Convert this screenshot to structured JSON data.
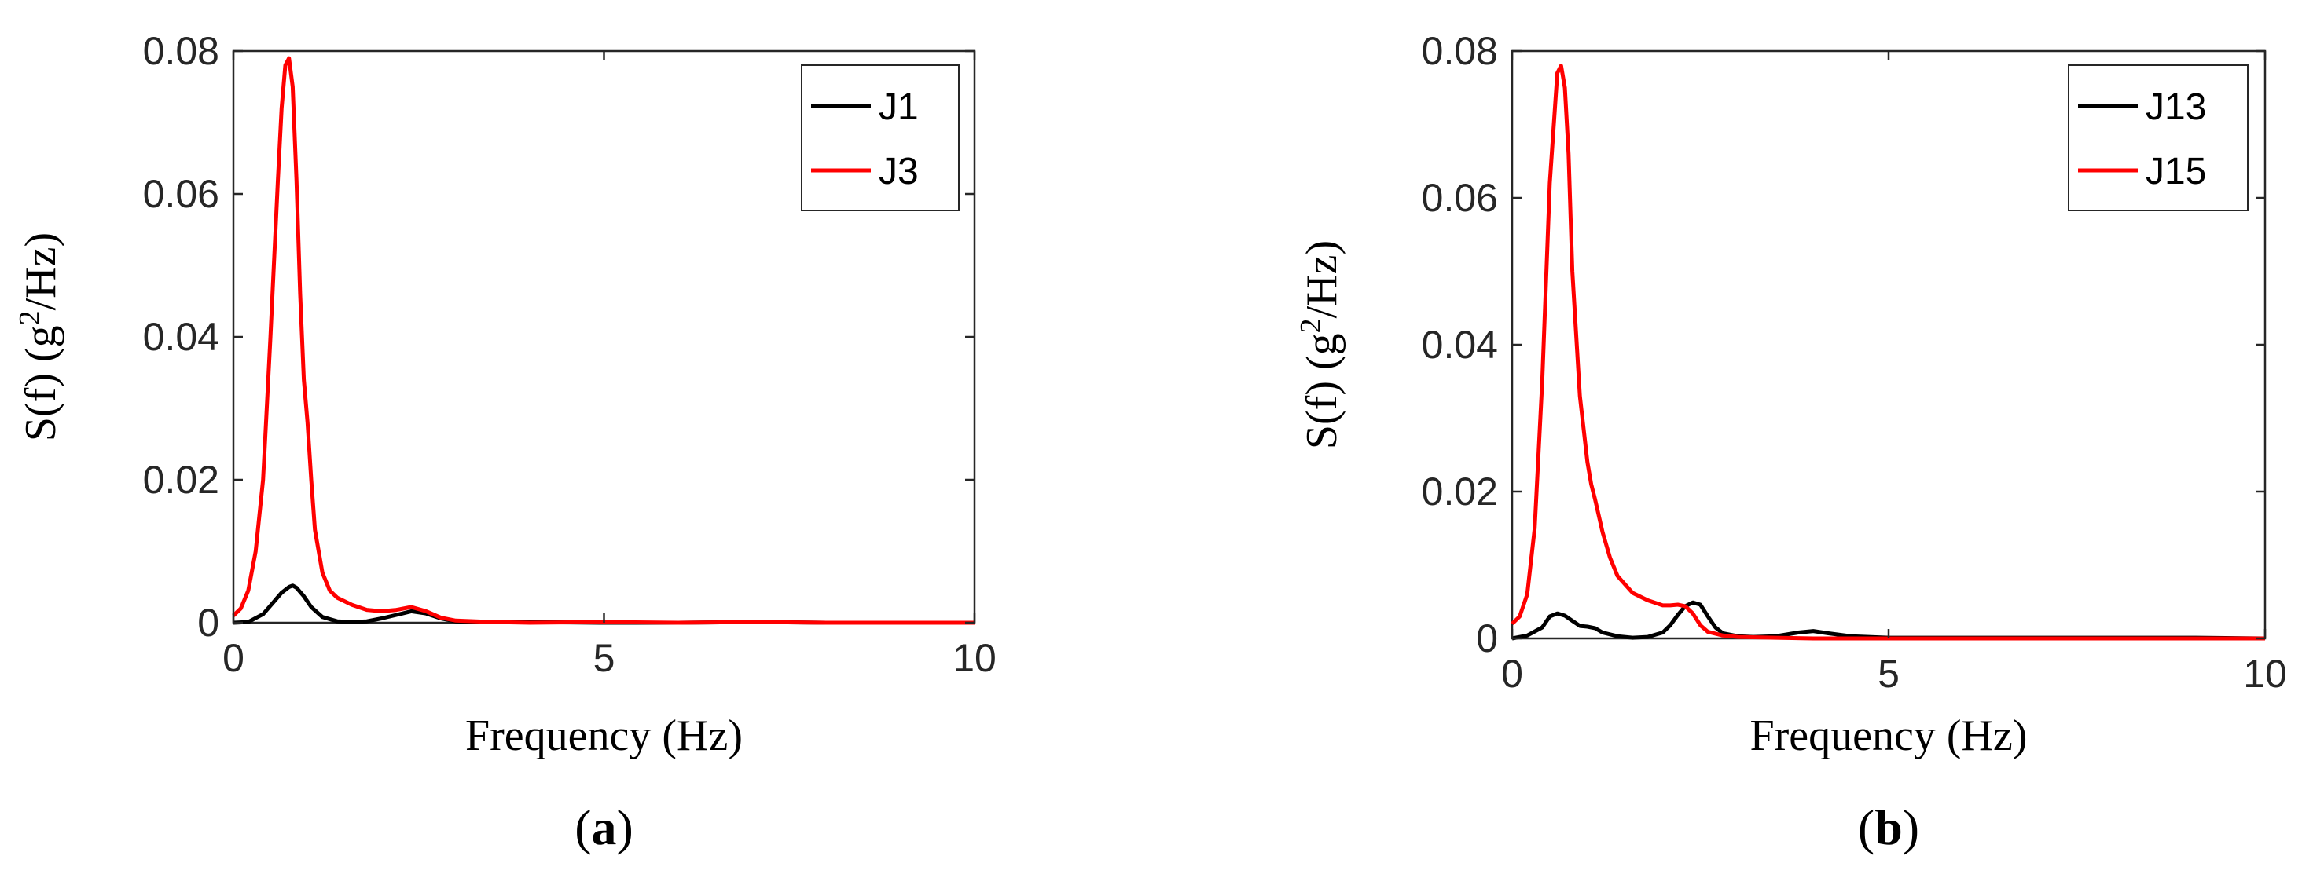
{
  "chart_data": [
    {
      "type": "line",
      "panel_label": {
        "open": "(",
        "letter": "a",
        "close": ")"
      },
      "xlabel": "Frequency (Hz)",
      "ylabel_prefix": "S(f) (g",
      "ylabel_sup": "2",
      "ylabel_suffix": "/Hz)",
      "xlim": [
        0,
        10
      ],
      "ylim": [
        0,
        0.08
      ],
      "xticks": [
        0,
        5,
        10
      ],
      "xtick_labels": [
        "0",
        "5",
        "10"
      ],
      "yticks": [
        0,
        0.02,
        0.04,
        0.06,
        0.08
      ],
      "ytick_labels": [
        "0",
        "0.02",
        "0.04",
        "0.06",
        "0.08"
      ],
      "grid": false,
      "legend_position": "top-right",
      "series": [
        {
          "name": "J1",
          "color": "#000000",
          "x": [
            0,
            0.2,
            0.4,
            0.55,
            0.65,
            0.75,
            0.8,
            0.85,
            0.95,
            1.05,
            1.2,
            1.4,
            1.6,
            1.8,
            2.0,
            2.2,
            2.4,
            2.6,
            2.8,
            3.0,
            3.5,
            4,
            5,
            6,
            7,
            8,
            9,
            10
          ],
          "y": [
            0,
            0.0001,
            0.0012,
            0.003,
            0.0042,
            0.005,
            0.0052,
            0.0049,
            0.0037,
            0.0022,
            0.0008,
            0.0002,
            0.0001,
            0.0002,
            0.0006,
            0.0011,
            0.0016,
            0.0013,
            0.0006,
            0.0002,
            0.0001,
            0.0001,
            0,
            0,
            0.0001,
            0,
            0,
            0
          ]
        },
        {
          "name": "J3",
          "color": "#ff0000",
          "x": [
            0,
            0.1,
            0.2,
            0.3,
            0.4,
            0.5,
            0.6,
            0.65,
            0.7,
            0.75,
            0.8,
            0.85,
            0.9,
            0.95,
            1.0,
            1.05,
            1.1,
            1.2,
            1.3,
            1.4,
            1.6,
            1.8,
            2.0,
            2.2,
            2.4,
            2.6,
            2.8,
            3.0,
            3.5,
            4,
            5,
            6,
            7,
            8,
            9,
            10
          ],
          "y": [
            0.001,
            0.002,
            0.0045,
            0.01,
            0.02,
            0.04,
            0.062,
            0.072,
            0.078,
            0.079,
            0.075,
            0.062,
            0.046,
            0.034,
            0.028,
            0.02,
            0.013,
            0.007,
            0.0045,
            0.0035,
            0.0025,
            0.0018,
            0.0016,
            0.0018,
            0.0022,
            0.0016,
            0.0007,
            0.0003,
            0.0001,
            0,
            0.0001,
            0,
            0.0001,
            0,
            0,
            0
          ]
        }
      ]
    },
    {
      "type": "line",
      "panel_label": {
        "open": "(",
        "letter": "b",
        "close": ")"
      },
      "xlabel": "Frequency (Hz)",
      "ylabel_prefix": "S(f) (g",
      "ylabel_sup": "2",
      "ylabel_suffix": "/Hz)",
      "xlim": [
        0,
        10
      ],
      "ylim": [
        0,
        0.08
      ],
      "xticks": [
        0,
        5,
        10
      ],
      "xtick_labels": [
        "0",
        "5",
        "10"
      ],
      "yticks": [
        0,
        0.02,
        0.04,
        0.06,
        0.08
      ],
      "ytick_labels": [
        "0",
        "0.02",
        "0.04",
        "0.06",
        "0.08"
      ],
      "grid": false,
      "legend_position": "top-right",
      "series": [
        {
          "name": "J13",
          "color": "#000000",
          "x": [
            0,
            0.2,
            0.4,
            0.5,
            0.6,
            0.7,
            0.8,
            0.9,
            1.0,
            1.1,
            1.2,
            1.4,
            1.6,
            1.8,
            2.0,
            2.1,
            2.2,
            2.3,
            2.4,
            2.5,
            2.6,
            2.7,
            2.8,
            3.0,
            3.2,
            3.5,
            3.8,
            4.0,
            4.2,
            4.5,
            5,
            6,
            7,
            8,
            9,
            10
          ],
          "y": [
            0,
            0.0004,
            0.0015,
            0.003,
            0.0034,
            0.0031,
            0.0024,
            0.0017,
            0.0016,
            0.0014,
            0.0008,
            0.0003,
            0.0001,
            0.0002,
            0.0008,
            0.0018,
            0.0032,
            0.0044,
            0.0049,
            0.0046,
            0.003,
            0.0015,
            0.0007,
            0.0003,
            0.0002,
            0.0003,
            0.0008,
            0.001,
            0.0007,
            0.0003,
            0.0001,
            0.0001,
            0.0001,
            0.0001,
            0.0001,
            0
          ]
        },
        {
          "name": "J15",
          "color": "#ff0000",
          "x": [
            0,
            0.1,
            0.2,
            0.3,
            0.4,
            0.5,
            0.6,
            0.65,
            0.7,
            0.75,
            0.8,
            0.9,
            1.0,
            1.05,
            1.1,
            1.2,
            1.3,
            1.4,
            1.6,
            1.8,
            2.0,
            2.1,
            2.2,
            2.3,
            2.4,
            2.5,
            2.6,
            2.8,
            3.0,
            3.5,
            4,
            5,
            6,
            7,
            8,
            9,
            10
          ],
          "y": [
            0.002,
            0.003,
            0.006,
            0.015,
            0.035,
            0.062,
            0.077,
            0.078,
            0.075,
            0.066,
            0.05,
            0.033,
            0.024,
            0.021,
            0.019,
            0.0145,
            0.011,
            0.0085,
            0.0062,
            0.0052,
            0.0045,
            0.0045,
            0.0046,
            0.0044,
            0.0034,
            0.0018,
            0.0009,
            0.0004,
            0.0002,
            0.0001,
            0,
            0,
            0,
            0,
            0,
            0,
            0
          ]
        }
      ]
    }
  ]
}
